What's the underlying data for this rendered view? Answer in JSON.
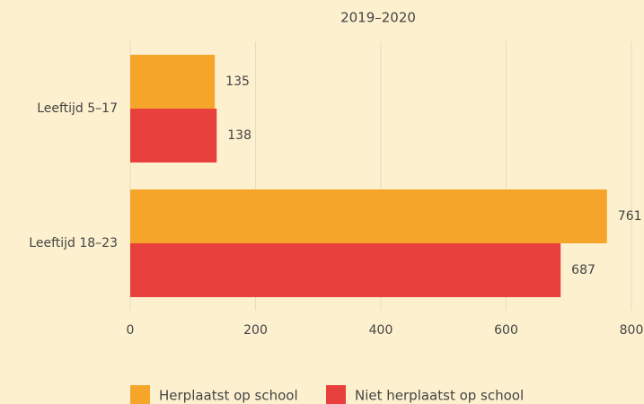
{
  "chart_data": {
    "type": "bar",
    "orientation": "horizontal",
    "title": "2019–2020",
    "categories": [
      "Leeftijd 5–17",
      "Leeftijd 18–23"
    ],
    "series": [
      {
        "name": "Herplaatst op school",
        "color": "#f5a52a",
        "values": [
          135,
          761
        ]
      },
      {
        "name": "Niet herplaatst op school",
        "color": "#e8403c",
        "values": [
          138,
          687
        ]
      }
    ],
    "xlim": [
      0,
      800
    ],
    "xticks": [
      0,
      200,
      400,
      600,
      800
    ],
    "grid": true
  }
}
